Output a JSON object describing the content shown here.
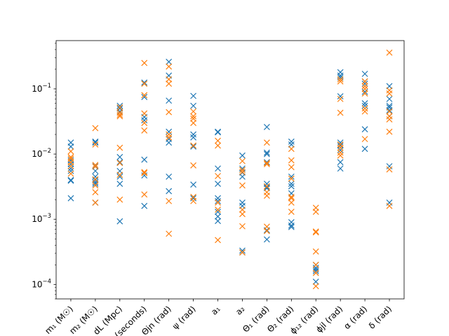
{
  "chart_data": {
    "type": "scatter",
    "marker": "x",
    "yscale": "log",
    "ylim": [
      6e-05,
      0.55
    ],
    "grid": false,
    "categories": [
      "m₁ (M☉)",
      "m₂ (M☉)",
      "dL (Mpc)",
      "t (seconds)",
      "Θjn (rad)",
      "ψ (rad)",
      "a₁",
      "a₂",
      "Θ₁ (rad)",
      "Θ₂ (rad)",
      "ϕ₁₂ (rad)",
      "ϕjl (rad)",
      "α (rad)",
      "δ (rad)"
    ],
    "y_ticks": [
      {
        "value": 0.0001,
        "base": "10",
        "exp": "−4"
      },
      {
        "value": 0.001,
        "base": "10",
        "exp": "−3"
      },
      {
        "value": 0.01,
        "base": "10",
        "exp": "−2"
      },
      {
        "value": 0.1,
        "base": "10",
        "exp": "−1"
      }
    ],
    "series": [
      {
        "color": "#1f77b4",
        "values": [
          [
            0.015,
            0.013,
            0.008,
            0.007,
            0.006,
            0.0055,
            0.004,
            0.0039,
            0.0021
          ],
          [
            0.0155,
            0.015,
            0.0065,
            0.0055,
            0.0045,
            0.004,
            0.0037,
            0.0035,
            0.0018
          ],
          [
            0.055,
            0.05,
            0.045,
            0.009,
            0.0075,
            0.0055,
            0.0045,
            0.0035,
            0.00093
          ],
          [
            0.125,
            0.075,
            0.037,
            0.033,
            0.0082,
            0.0047,
            0.0016
          ],
          [
            0.26,
            0.16,
            0.066,
            0.022,
            0.017,
            0.015,
            0.0045,
            0.0027
          ],
          [
            0.078,
            0.055,
            0.02,
            0.018,
            0.013,
            0.0034,
            0.0021
          ],
          [
            0.022,
            0.0215,
            0.006,
            0.0035,
            0.0021,
            0.0019,
            0.0013,
            0.0011,
            0.00094
          ],
          [
            0.0095,
            0.006,
            0.0052,
            0.0045,
            0.0018,
            0.0016,
            0.00033,
            0.00031
          ],
          [
            0.026,
            0.0105,
            0.01,
            0.0075,
            0.0035,
            0.0031,
            0.003,
            0.00068,
            0.00049
          ],
          [
            0.0155,
            0.014,
            0.0045,
            0.0035,
            0.0032,
            0.0025,
            0.0009,
            0.0008,
            0.00076
          ],
          [
            0.0002,
            0.00018,
            0.00017,
            0.00016,
            0.00011
          ],
          [
            0.18,
            0.16,
            0.15,
            0.077,
            0.015,
            0.0135,
            0.0115,
            0.0075,
            0.006
          ],
          [
            0.17,
            0.13,
            0.12,
            0.09,
            0.06,
            0.055,
            0.024,
            0.012
          ],
          [
            0.11,
            0.07,
            0.055,
            0.052,
            0.047,
            0.038,
            0.0065,
            0.0018
          ]
        ]
      },
      {
        "color": "#ff7f0e",
        "values": [
          [
            0.011,
            0.009,
            0.0085,
            0.0075,
            0.0065,
            0.005
          ],
          [
            0.025,
            0.014,
            0.0068,
            0.0064,
            0.0041,
            0.0033,
            0.0026,
            0.0018
          ],
          [
            0.052,
            0.043,
            0.04,
            0.038,
            0.0125,
            0.0073,
            0.0048,
            0.002
          ],
          [
            0.25,
            0.12,
            0.08,
            0.042,
            0.03,
            0.023,
            0.0053,
            0.0051,
            0.0024
          ],
          [
            0.22,
            0.14,
            0.12,
            0.044,
            0.02,
            0.018,
            0.0019,
            0.0006
          ],
          [
            0.045,
            0.038,
            0.035,
            0.03,
            0.0135,
            0.0067,
            0.0022,
            0.0019
          ],
          [
            0.016,
            0.0135,
            0.0046,
            0.0018,
            0.0014,
            0.00048
          ],
          [
            0.0078,
            0.0057,
            0.0053,
            0.0033,
            0.0014,
            0.0012,
            0.00078,
            0.00031
          ],
          [
            0.015,
            0.0073,
            0.007,
            0.0032,
            0.0026,
            0.0023,
            0.00077,
            0.00066
          ],
          [
            0.012,
            0.008,
            0.0063,
            0.0042,
            0.0022,
            0.0021,
            0.0018,
            0.0013
          ],
          [
            0.0015,
            0.0013,
            0.00065,
            0.00063,
            0.00032,
            0.0002,
            0.00015,
            9.4e-05
          ],
          [
            0.14,
            0.13,
            0.07,
            0.043,
            0.014,
            0.0125,
            0.0105,
            0.0095
          ],
          [
            0.13,
            0.11,
            0.1,
            0.085,
            0.05,
            0.045,
            0.017
          ],
          [
            0.36,
            0.095,
            0.085,
            0.045,
            0.038,
            0.034,
            0.022,
            0.0058,
            0.0016
          ]
        ]
      }
    ]
  }
}
